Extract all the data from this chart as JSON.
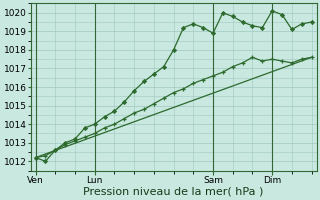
{
  "bg_color": "#c8e8e0",
  "grid_color": "#a0c8c0",
  "line_color": "#2d6a2d",
  "ylim": [
    1011.5,
    1020.5
  ],
  "yticks": [
    1012,
    1013,
    1014,
    1015,
    1016,
    1017,
    1018,
    1019,
    1020
  ],
  "xlabel": "Pression niveau de la mer( hPa )",
  "xlabel_fontsize": 8,
  "tick_fontsize": 6.5,
  "day_labels": [
    "Ven",
    "Lun",
    "Sam",
    "Dim"
  ],
  "day_positions": [
    0,
    6,
    18,
    24
  ],
  "xlim": [
    -0.5,
    28.5
  ],
  "line1_x": [
    0,
    1,
    2,
    3,
    4,
    5,
    6,
    7,
    8,
    9,
    10,
    11,
    12,
    13,
    14,
    15,
    16,
    17,
    18,
    19,
    20,
    21,
    22,
    23,
    24,
    25,
    26,
    27,
    28
  ],
  "line1_y": [
    1012.2,
    1012.0,
    1012.6,
    1013.0,
    1013.2,
    1013.8,
    1014.0,
    1014.4,
    1014.7,
    1015.2,
    1015.8,
    1016.3,
    1016.7,
    1017.1,
    1018.0,
    1019.2,
    1019.4,
    1019.2,
    1018.9,
    1020.0,
    1019.8,
    1019.5,
    1019.3,
    1019.2,
    1020.1,
    1019.9,
    1019.1,
    1019.4,
    1019.5
  ],
  "line2_x": [
    0,
    1,
    2,
    3,
    4,
    5,
    6,
    7,
    8,
    9,
    10,
    11,
    12,
    13,
    14,
    15,
    16,
    17,
    18,
    19,
    20,
    21,
    22,
    23,
    24,
    25,
    26,
    27,
    28
  ],
  "line2_y": [
    1012.2,
    1012.3,
    1012.6,
    1012.9,
    1013.1,
    1013.3,
    1013.5,
    1013.8,
    1014.0,
    1014.3,
    1014.6,
    1014.8,
    1015.1,
    1015.4,
    1015.7,
    1015.9,
    1016.2,
    1016.4,
    1016.6,
    1016.8,
    1017.1,
    1017.3,
    1017.6,
    1017.4,
    1017.5,
    1017.4,
    1017.3,
    1017.5,
    1017.6
  ],
  "line3_x": [
    0,
    28
  ],
  "line3_y": [
    1012.2,
    1017.6
  ],
  "vline_color": "#336633",
  "spine_color": "#336633"
}
